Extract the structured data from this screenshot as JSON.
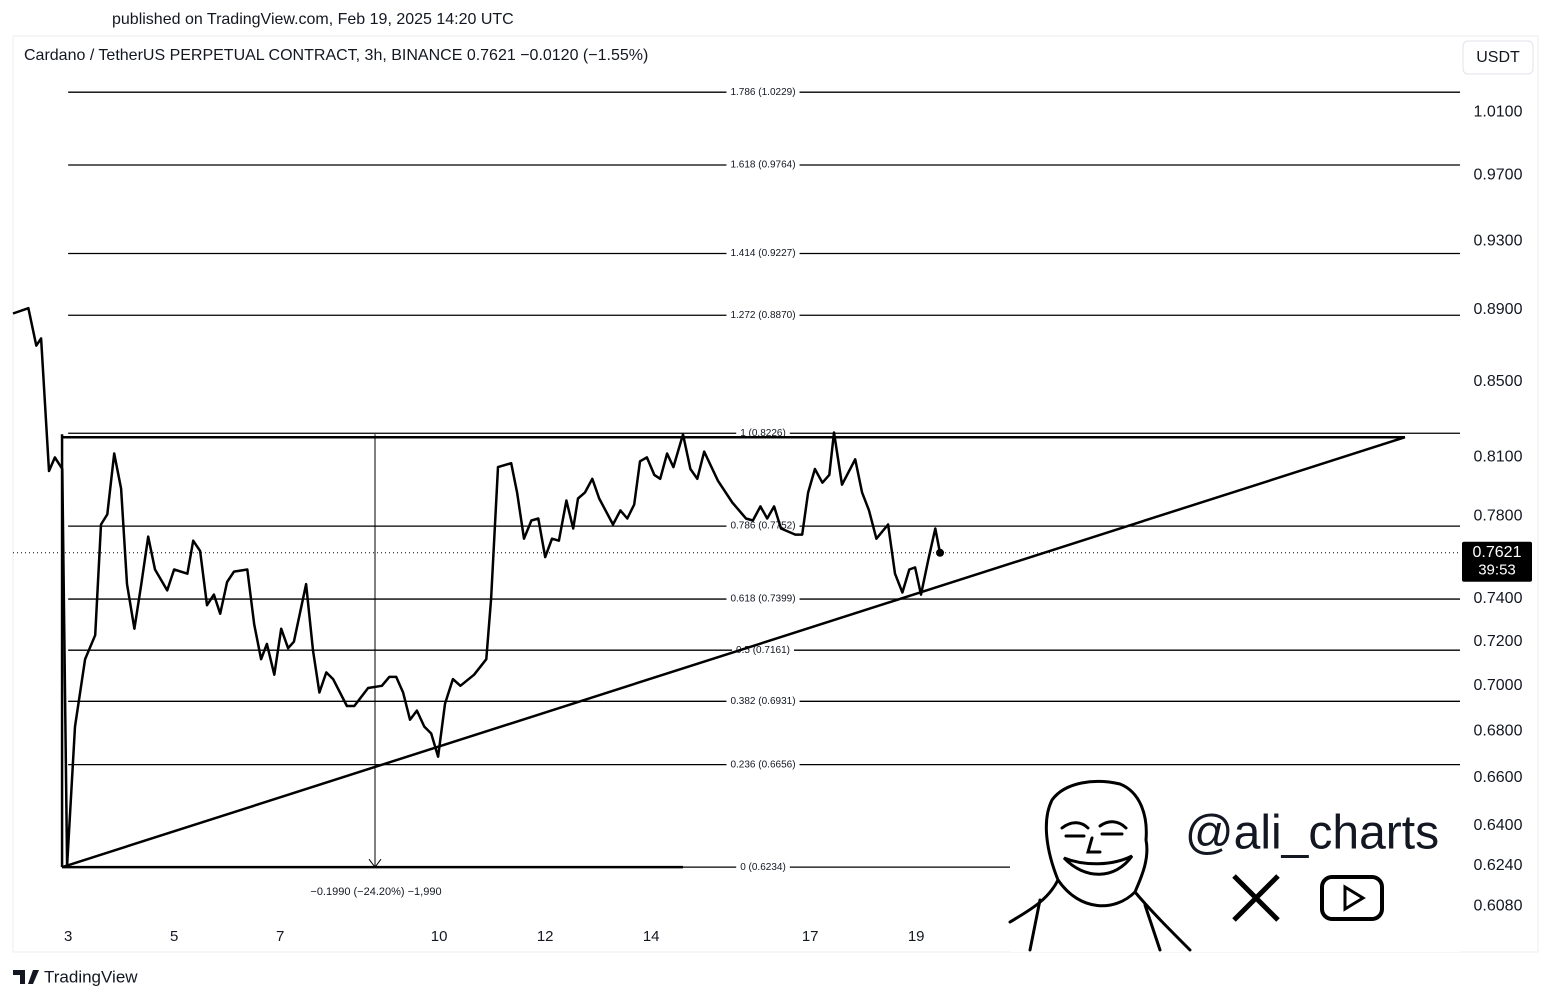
{
  "published": "published on TradingView.com, Feb 19, 2025 14:20 UTC",
  "footer_brand": "TradingView",
  "watermark": "@ali_charts",
  "chart_data": {
    "type": "line",
    "title": "Cardano / TetherUS PERPETUAL CONTRACT, 3h, BINANCE  0.7621  −0.0120 (−1.55%)",
    "currency": "USDT",
    "color": "#000000",
    "log_scale": true,
    "x": [
      1.96,
      2.25,
      2.4,
      2.49,
      2.64,
      2.75,
      2.89,
      2.98,
      3.13,
      3.32,
      3.51,
      3.62,
      3.74,
      3.87,
      4.0,
      4.11,
      4.25,
      4.38,
      4.51,
      4.64,
      4.87,
      5.0,
      5.25,
      5.36,
      5.49,
      5.62,
      5.75,
      5.87,
      6.0,
      6.13,
      6.38,
      6.51,
      6.64,
      6.75,
      6.89,
      7.02,
      7.15,
      7.26,
      7.49,
      7.62,
      7.74,
      7.87,
      8.0,
      8.26,
      8.4,
      8.66,
      8.92,
      9.06,
      9.19,
      9.32,
      9.45,
      9.58,
      9.72,
      9.85,
      9.98,
      10.11,
      10.26,
      10.4,
      10.66,
      10.89,
      10.98,
      11.11,
      11.36,
      11.47,
      11.6,
      11.74,
      11.87,
      12.0,
      12.13,
      12.26,
      12.4,
      12.53,
      12.62,
      12.75,
      12.89,
      13.02,
      13.28,
      13.42,
      13.55,
      13.68,
      13.79,
      13.92,
      14.06,
      14.17,
      14.3,
      14.42,
      14.6,
      14.74,
      14.87,
      15.0,
      15.26,
      15.53,
      15.79,
      15.92,
      16.06,
      16.19,
      16.32,
      16.45,
      16.72,
      16.85,
      16.96,
      17.09,
      17.23,
      17.36,
      17.45,
      17.6,
      17.85,
      17.98,
      18.11,
      18.25,
      18.47,
      18.6,
      18.74,
      18.87,
      18.98,
      19.09,
      19.23,
      19.36,
      19.45
    ],
    "values": [
      0.888,
      0.891,
      0.87,
      0.874,
      0.803,
      0.81,
      0.804,
      0.624,
      0.682,
      0.712,
      0.723,
      0.776,
      0.781,
      0.812,
      0.794,
      0.747,
      0.726,
      0.747,
      0.77,
      0.754,
      0.744,
      0.754,
      0.752,
      0.768,
      0.763,
      0.737,
      0.742,
      0.733,
      0.748,
      0.753,
      0.754,
      0.728,
      0.712,
      0.719,
      0.705,
      0.726,
      0.717,
      0.72,
      0.747,
      0.716,
      0.697,
      0.706,
      0.703,
      0.691,
      0.691,
      0.699,
      0.7,
      0.704,
      0.704,
      0.697,
      0.685,
      0.689,
      0.682,
      0.679,
      0.669,
      0.692,
      0.703,
      0.7,
      0.705,
      0.712,
      0.74,
      0.805,
      0.807,
      0.792,
      0.769,
      0.778,
      0.779,
      0.76,
      0.769,
      0.768,
      0.788,
      0.774,
      0.789,
      0.792,
      0.799,
      0.789,
      0.776,
      0.783,
      0.779,
      0.786,
      0.808,
      0.81,
      0.801,
      0.799,
      0.812,
      0.805,
      0.822,
      0.804,
      0.799,
      0.813,
      0.798,
      0.787,
      0.779,
      0.778,
      0.785,
      0.779,
      0.785,
      0.774,
      0.771,
      0.771,
      0.792,
      0.804,
      0.797,
      0.801,
      0.823,
      0.796,
      0.809,
      0.792,
      0.783,
      0.769,
      0.776,
      0.752,
      0.743,
      0.754,
      0.755,
      0.742,
      0.759,
      0.774,
      0.7621
    ],
    "xlim": [
      1.96,
      29.26
    ],
    "xticks": [
      3,
      5,
      7,
      10,
      12,
      14,
      17,
      19
    ],
    "ylim": [
      0.5905,
      1.0603
    ],
    "yticks": [
      {
        "value": 1.01,
        "label": "1.0100"
      },
      {
        "value": 0.97,
        "label": "0.9700"
      },
      {
        "value": 0.93,
        "label": "0.9300"
      },
      {
        "value": 0.89,
        "label": "0.8900"
      },
      {
        "value": 0.85,
        "label": "0.8500"
      },
      {
        "value": 0.81,
        "label": "0.8100"
      },
      {
        "value": 0.78,
        "label": "0.7800"
      },
      {
        "value": 0.74,
        "label": "0.7400"
      },
      {
        "value": 0.72,
        "label": "0.7200"
      },
      {
        "value": 0.7,
        "label": "0.7000"
      },
      {
        "value": 0.68,
        "label": "0.6800"
      },
      {
        "value": 0.66,
        "label": "0.6600"
      },
      {
        "value": 0.64,
        "label": "0.6400"
      },
      {
        "value": 0.624,
        "label": "0.6240"
      },
      {
        "value": 0.608,
        "label": "0.6080"
      }
    ],
    "fib_levels": [
      {
        "value": 1.0229,
        "label": "1.786 (1.0229)"
      },
      {
        "value": 0.9764,
        "label": "1.618 (0.9764)"
      },
      {
        "value": 0.9227,
        "label": "1.414 (0.9227)"
      },
      {
        "value": 0.887,
        "label": "1.272 (0.8870)"
      },
      {
        "value": 0.8226,
        "label": "1 (0.8226)"
      },
      {
        "value": 0.7752,
        "label": "0.786 (0.7752)"
      },
      {
        "value": 0.7399,
        "label": "0.618 (0.7399)"
      },
      {
        "value": 0.7161,
        "label": "0.5 (0.7161)"
      },
      {
        "value": 0.6931,
        "label": "0.382 (0.6931)"
      },
      {
        "value": 0.6656,
        "label": "0.236 (0.6656)"
      },
      {
        "value": 0.6234,
        "label": "0 (0.6234)"
      }
    ],
    "measure_label": "−0.1990 (−24.20%) −1,990",
    "last_price": 0.7621,
    "countdown": "39:53"
  }
}
